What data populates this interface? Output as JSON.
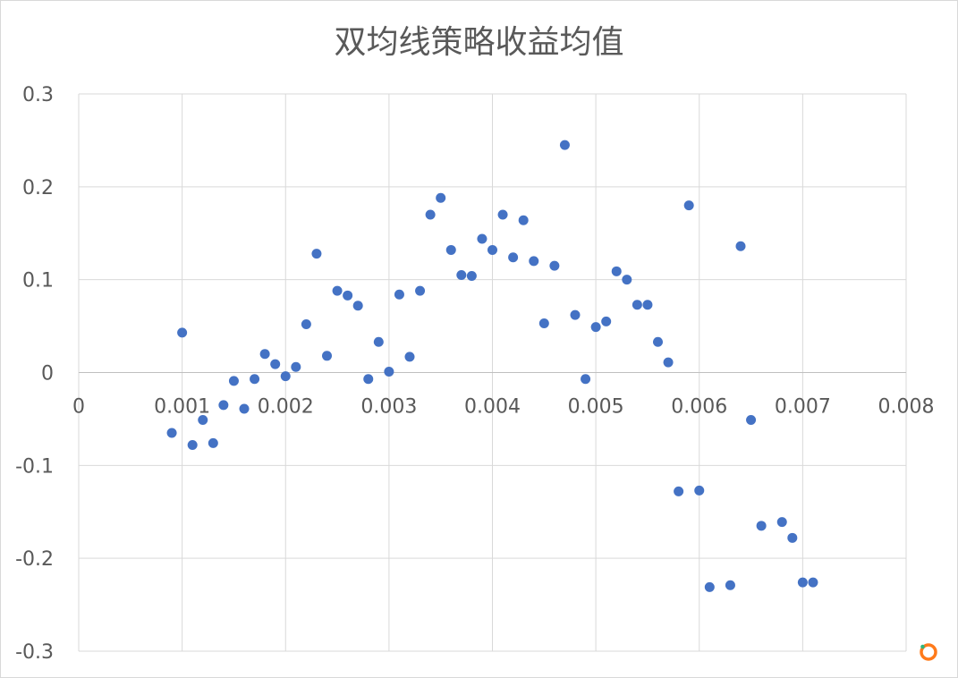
{
  "chart_data": {
    "type": "scatter",
    "title": "双均线策略收益均值",
    "xlabel": "",
    "ylabel": "",
    "xlim": [
      0,
      0.008
    ],
    "ylim": [
      -0.3,
      0.3
    ],
    "x_ticks": [
      "0",
      "0.001",
      "0.002",
      "0.003",
      "0.004",
      "0.005",
      "0.006",
      "0.007",
      "0.008"
    ],
    "y_ticks": [
      "0.3",
      "0.2",
      "0.1",
      "0",
      "-0.1",
      "-0.2",
      "-0.3"
    ],
    "grid": true,
    "legend": "none",
    "marker_color": "#4472c4",
    "series": [
      {
        "points": [
          [
            0.0009,
            -0.065
          ],
          [
            0.001,
            0.043
          ],
          [
            0.0011,
            -0.078
          ],
          [
            0.0012,
            -0.051
          ],
          [
            0.0013,
            -0.076
          ],
          [
            0.0014,
            -0.035
          ],
          [
            0.0015,
            -0.009
          ],
          [
            0.0016,
            -0.039
          ],
          [
            0.0017,
            -0.007
          ],
          [
            0.0018,
            0.02
          ],
          [
            0.0019,
            0.009
          ],
          [
            0.002,
            -0.004
          ],
          [
            0.0021,
            0.006
          ],
          [
            0.0022,
            0.052
          ],
          [
            0.0023,
            0.128
          ],
          [
            0.0024,
            0.018
          ],
          [
            0.0025,
            0.088
          ],
          [
            0.0026,
            0.083
          ],
          [
            0.0027,
            0.072
          ],
          [
            0.0028,
            -0.007
          ],
          [
            0.0029,
            0.033
          ],
          [
            0.003,
            0.001
          ],
          [
            0.0031,
            0.084
          ],
          [
            0.0032,
            0.017
          ],
          [
            0.0033,
            0.088
          ],
          [
            0.0034,
            0.17
          ],
          [
            0.0035,
            0.188
          ],
          [
            0.0036,
            0.132
          ],
          [
            0.0037,
            0.105
          ],
          [
            0.0038,
            0.104
          ],
          [
            0.0039,
            0.144
          ],
          [
            0.004,
            0.132
          ],
          [
            0.0041,
            0.17
          ],
          [
            0.0042,
            0.124
          ],
          [
            0.0043,
            0.164
          ],
          [
            0.0044,
            0.12
          ],
          [
            0.0045,
            0.053
          ],
          [
            0.0046,
            0.115
          ],
          [
            0.0047,
            0.245
          ],
          [
            0.0048,
            0.062
          ],
          [
            0.0049,
            -0.007
          ],
          [
            0.005,
            0.049
          ],
          [
            0.0051,
            0.055
          ],
          [
            0.0052,
            0.109
          ],
          [
            0.0053,
            0.1
          ],
          [
            0.0054,
            0.073
          ],
          [
            0.0055,
            0.073
          ],
          [
            0.0056,
            0.033
          ],
          [
            0.0057,
            0.011
          ],
          [
            0.0058,
            -0.128
          ],
          [
            0.0059,
            0.18
          ],
          [
            0.006,
            -0.127
          ],
          [
            0.0061,
            -0.231
          ],
          [
            0.0063,
            -0.229
          ],
          [
            0.0064,
            0.136
          ],
          [
            0.0065,
            -0.051
          ],
          [
            0.0066,
            -0.165
          ],
          [
            0.0068,
            -0.161
          ],
          [
            0.0069,
            -0.178
          ],
          [
            0.007,
            -0.226
          ],
          [
            0.0071,
            -0.226
          ]
        ]
      }
    ]
  }
}
